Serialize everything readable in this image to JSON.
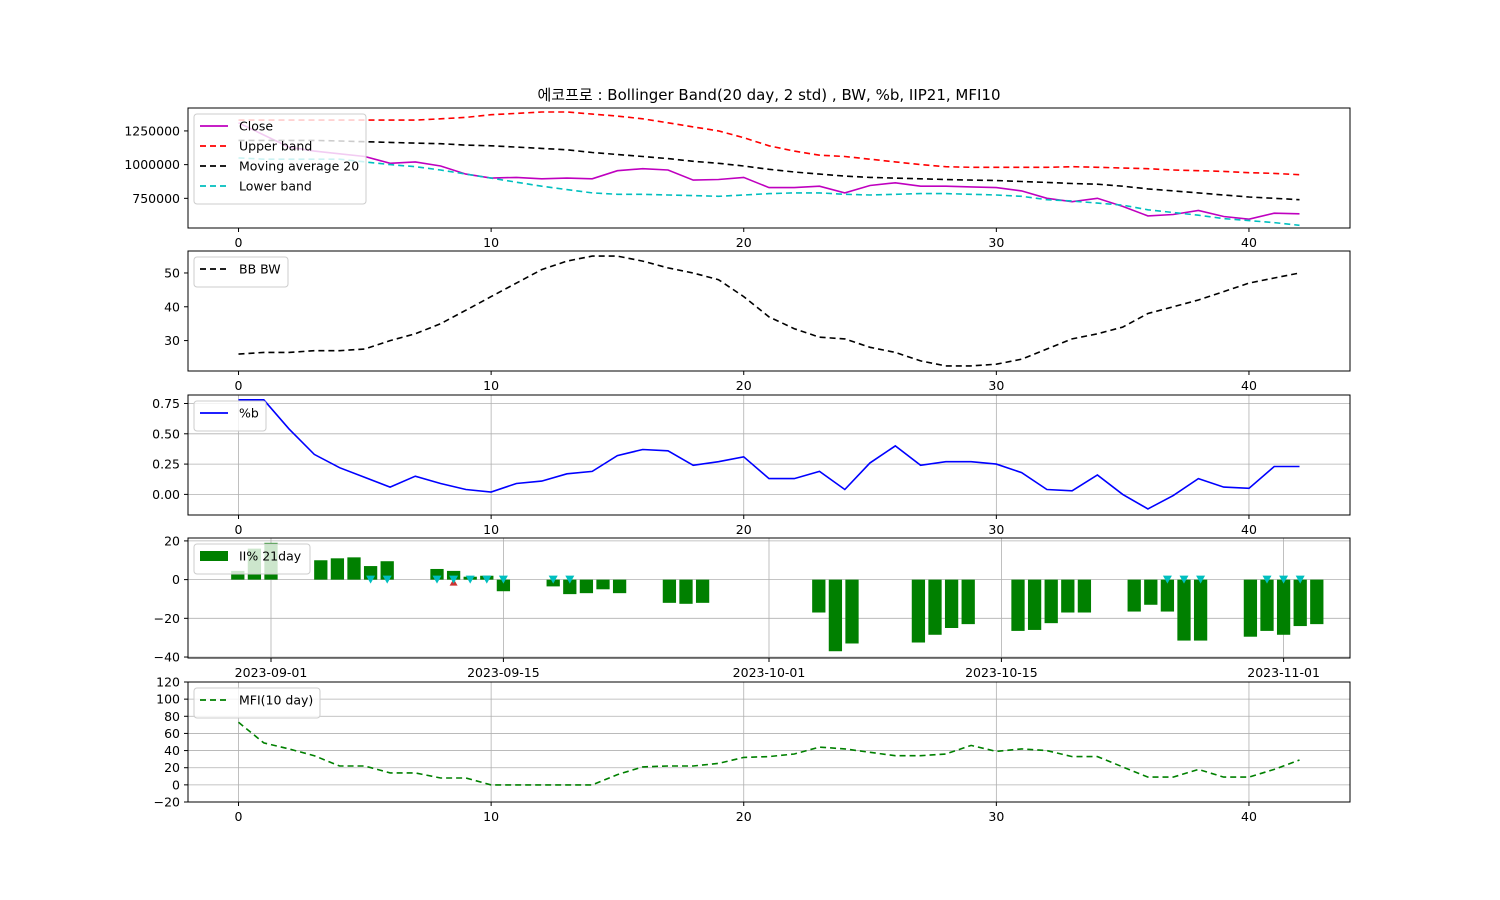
{
  "title": "에코프로 : Bollinger Band(20 day, 2 std) , BW, %b, IIP21, MFI10",
  "chart_data": [
    {
      "type": "line",
      "x": [
        0,
        1,
        2,
        3,
        4,
        5,
        6,
        7,
        8,
        9,
        10,
        11,
        12,
        13,
        14,
        15,
        16,
        17,
        18,
        19,
        20,
        21,
        22,
        23,
        24,
        25,
        26,
        27,
        28,
        29,
        30,
        31,
        32,
        33,
        34,
        35,
        36,
        37,
        38,
        39,
        40,
        41,
        42
      ],
      "series": [
        {
          "name": "Close",
          "color": "#bf00bf",
          "style": "solid",
          "values": [
            1310000,
            1220000,
            1130000,
            1100000,
            1080000,
            1060000,
            1010000,
            1020000,
            990000,
            930000,
            900000,
            905000,
            895000,
            900000,
            895000,
            955000,
            970000,
            960000,
            885000,
            890000,
            905000,
            830000,
            830000,
            840000,
            790000,
            845000,
            865000,
            840000,
            840000,
            835000,
            830000,
            805000,
            750000,
            725000,
            750000,
            690000,
            620000,
            630000,
            660000,
            615000,
            595000,
            640000,
            635000
          ]
        },
        {
          "name": "Upper band",
          "color": "#ff0000",
          "style": "dashed",
          "values": [
            1330000,
            1330000,
            1330000,
            1330000,
            1330000,
            1330000,
            1330000,
            1330000,
            1340000,
            1350000,
            1370000,
            1380000,
            1390000,
            1390000,
            1375000,
            1360000,
            1340000,
            1310000,
            1280000,
            1250000,
            1200000,
            1140000,
            1100000,
            1070000,
            1060000,
            1040000,
            1020000,
            1000000,
            985000,
            980000,
            980000,
            980000,
            980000,
            985000,
            980000,
            975000,
            970000,
            960000,
            955000,
            950000,
            940000,
            935000,
            925000
          ]
        },
        {
          "name": "Moving average 20",
          "color": "#000000",
          "style": "dashed",
          "values": [
            1180000,
            1180000,
            1180000,
            1180000,
            1175000,
            1170000,
            1165000,
            1160000,
            1155000,
            1145000,
            1140000,
            1130000,
            1120000,
            1110000,
            1090000,
            1075000,
            1060000,
            1045000,
            1025000,
            1010000,
            990000,
            965000,
            945000,
            930000,
            915000,
            905000,
            900000,
            895000,
            890000,
            885000,
            882000,
            875000,
            868000,
            860000,
            855000,
            840000,
            820000,
            805000,
            790000,
            775000,
            760000,
            750000,
            740000
          ]
        },
        {
          "name": "Lower band",
          "color": "#00bfbf",
          "style": "dashed",
          "values": [
            1050000,
            1040000,
            1040000,
            1040000,
            1040000,
            1020000,
            1000000,
            985000,
            960000,
            930000,
            900000,
            870000,
            840000,
            815000,
            790000,
            780000,
            780000,
            775000,
            770000,
            765000,
            775000,
            785000,
            790000,
            790000,
            780000,
            775000,
            780000,
            785000,
            785000,
            780000,
            775000,
            765000,
            740000,
            730000,
            715000,
            700000,
            665000,
            645000,
            625000,
            600000,
            585000,
            570000,
            550000
          ]
        }
      ],
      "ylim": [
        530000,
        1420000
      ],
      "xlim": [
        -2,
        44
      ],
      "yticks": [
        750000,
        1000000,
        1250000
      ],
      "xticks": [
        0,
        10,
        20,
        30,
        40
      ],
      "grid": false,
      "legend": "top-left"
    },
    {
      "type": "line",
      "x": [
        0,
        1,
        2,
        3,
        4,
        5,
        6,
        7,
        8,
        9,
        10,
        11,
        12,
        13,
        14,
        15,
        16,
        17,
        18,
        19,
        20,
        21,
        22,
        23,
        24,
        25,
        26,
        27,
        28,
        29,
        30,
        31,
        32,
        33,
        34,
        35,
        36,
        37,
        38,
        39,
        40,
        41,
        42
      ],
      "series": [
        {
          "name": "BB BW",
          "color": "#000000",
          "style": "dashed",
          "values": [
            26,
            26.5,
            26.5,
            27,
            27,
            27.5,
            30,
            32,
            35,
            39,
            43,
            47,
            51,
            53.5,
            55,
            55,
            53.5,
            51.5,
            50,
            48,
            43,
            37,
            33.5,
            31,
            30.5,
            28,
            26.5,
            24,
            22.5,
            22.5,
            23,
            24.5,
            27.5,
            30.5,
            32,
            34,
            38,
            40,
            42,
            44.5,
            47,
            48.5,
            50
          ]
        }
      ],
      "ylim": [
        21,
        56.5
      ],
      "xlim": [
        -2,
        44
      ],
      "yticks": [
        30,
        40,
        50
      ],
      "xticks": [
        0,
        10,
        20,
        30,
        40
      ],
      "grid": false,
      "legend": "top-left"
    },
    {
      "type": "line",
      "x": [
        0,
        1,
        2,
        3,
        4,
        5,
        6,
        7,
        8,
        9,
        10,
        11,
        12,
        13,
        14,
        15,
        16,
        17,
        18,
        19,
        20,
        21,
        22,
        23,
        24,
        25,
        26,
        27,
        28,
        29,
        30,
        31,
        32,
        33,
        34,
        35,
        36,
        37,
        38,
        39,
        40,
        41,
        42
      ],
      "series": [
        {
          "name": "%b",
          "color": "#0000ff",
          "style": "solid",
          "values": [
            0.78,
            0.78,
            0.54,
            0.33,
            0.22,
            0.14,
            0.06,
            0.15,
            0.09,
            0.04,
            0.02,
            0.09,
            0.11,
            0.17,
            0.19,
            0.32,
            0.37,
            0.36,
            0.24,
            0.27,
            0.31,
            0.13,
            0.13,
            0.19,
            0.04,
            0.26,
            0.4,
            0.24,
            0.27,
            0.27,
            0.25,
            0.18,
            0.04,
            0.03,
            0.16,
            0.0,
            -0.12,
            -0.01,
            0.13,
            0.06,
            0.05,
            0.23,
            0.23
          ]
        }
      ],
      "ylim": [
        -0.17,
        0.82
      ],
      "xlim": [
        -2,
        44
      ],
      "yticks": [
        0.0,
        0.25,
        0.5,
        0.75
      ],
      "ytick_labels": [
        "0.00",
        "0.25",
        "0.50",
        "0.75"
      ],
      "xticks": [
        0,
        10,
        20,
        30,
        40
      ],
      "grid": true,
      "legend": "top-left"
    },
    {
      "type": "bar",
      "x_dates": [
        "2023-08-30",
        "2023-08-31",
        "2023-09-01",
        "2023-09-04",
        "2023-09-05",
        "2023-09-06",
        "2023-09-07",
        "2023-09-08",
        "2023-09-11",
        "2023-09-12",
        "2023-09-13",
        "2023-09-14",
        "2023-09-15",
        "2023-09-18",
        "2023-09-19",
        "2023-09-20",
        "2023-09-21",
        "2023-09-22",
        "2023-09-25",
        "2023-09-26",
        "2023-09-27",
        "2023-10-04",
        "2023-10-05",
        "2023-10-06",
        "2023-10-10",
        "2023-10-11",
        "2023-10-12",
        "2023-10-13",
        "2023-10-16",
        "2023-10-17",
        "2023-10-18",
        "2023-10-19",
        "2023-10-20",
        "2023-10-23",
        "2023-10-24",
        "2023-10-25",
        "2023-10-26",
        "2023-10-27",
        "2023-10-30",
        "2023-10-31",
        "2023-11-01",
        "2023-11-02",
        "2023-11-03"
      ],
      "series": [
        {
          "name": "II% 21day",
          "color": "#008000",
          "values": [
            4.5,
            16,
            19,
            10,
            11,
            11.5,
            7,
            9.5,
            5.5,
            4.5,
            1.5,
            2,
            -6,
            -3.5,
            -7.5,
            -7,
            -5,
            -7,
            -12,
            -12.5,
            -12,
            -17,
            -37,
            -33,
            -32.5,
            -28.5,
            -25,
            -23,
            -26.5,
            -26,
            -22.5,
            -17,
            -17,
            -16.5,
            -13,
            -16.5,
            -31.5,
            -31.5,
            -29.5,
            -26.5,
            -28.5,
            -24,
            -23
          ]
        }
      ],
      "markers_down_dates": [
        "2023-09-07",
        "2023-09-08",
        "2023-09-11",
        "2023-09-12",
        "2023-09-13",
        "2023-09-14",
        "2023-09-15",
        "2023-09-18",
        "2023-09-19",
        "2023-10-25",
        "2023-10-26",
        "2023-10-27",
        "2023-10-31",
        "2023-11-01",
        "2023-11-02"
      ],
      "markers_up_dates": [
        "2023-09-12"
      ],
      "ylim": [
        -40.5,
        21.5
      ],
      "date_range": [
        "2023-08-27",
        "2023-11-05"
      ],
      "yticks": [
        -40,
        -20,
        0,
        20
      ],
      "ytick_labels": [
        "−40",
        "−20",
        "0",
        "20"
      ],
      "xticks_dates": [
        "2023-09-01",
        "2023-09-15",
        "2023-10-01",
        "2023-10-15",
        "2023-11-01"
      ],
      "grid": true,
      "legend": "top-left"
    },
    {
      "type": "line",
      "x": [
        0,
        1,
        2,
        3,
        4,
        5,
        6,
        7,
        8,
        9,
        10,
        11,
        12,
        13,
        14,
        15,
        16,
        17,
        18,
        19,
        20,
        21,
        22,
        23,
        24,
        25,
        26,
        27,
        28,
        29,
        30,
        31,
        32,
        33,
        34,
        35,
        36,
        37,
        38,
        39,
        40,
        41,
        42
      ],
      "series": [
        {
          "name": "MFI(10 day)",
          "color": "#008000",
          "style": "dashed",
          "values": [
            73,
            49,
            42,
            34,
            22,
            22,
            14,
            14,
            8,
            8,
            0,
            0,
            0,
            0,
            0,
            12,
            21,
            22,
            22,
            25,
            32,
            33,
            36,
            44,
            42,
            38,
            34,
            34,
            36,
            46,
            39,
            42,
            40,
            33,
            33,
            21,
            9,
            9,
            18,
            9,
            9,
            18,
            29
          ]
        }
      ],
      "ylim": [
        -20,
        120
      ],
      "xlim": [
        -2,
        44
      ],
      "yticks": [
        -20,
        0,
        20,
        40,
        60,
        80,
        100,
        120
      ],
      "ytick_labels": [
        "−20",
        "0",
        "20",
        "40",
        "60",
        "80",
        "100",
        "120"
      ],
      "xticks": [
        0,
        10,
        20,
        30,
        40
      ],
      "grid": true,
      "legend": "top-left"
    }
  ]
}
